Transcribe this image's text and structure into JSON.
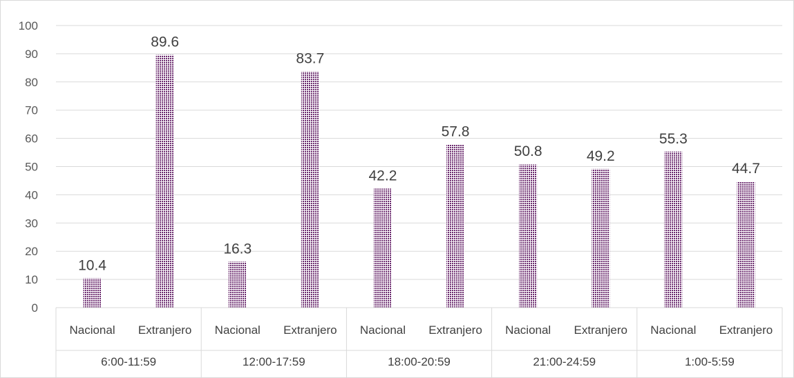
{
  "chart_data": {
    "type": "bar",
    "title": "",
    "xlabel": "",
    "ylabel": "",
    "ylim": [
      0,
      100
    ],
    "yticks": [
      "0",
      "10",
      "20",
      "30",
      "40",
      "50",
      "60",
      "70",
      "80",
      "90",
      "100"
    ],
    "grid": true,
    "legend": "none",
    "bar_color": "#6b2a6e",
    "bar_pattern": "dotted",
    "groups": [
      "6:00-11:59",
      "12:00-17:59",
      "18:00-20:59",
      "21:00-24:59",
      "1:00-5:59"
    ],
    "categories": [
      {
        "group": "6:00-11:59",
        "label": "Nacional",
        "value": 10.4,
        "value_label": "10.4"
      },
      {
        "group": "6:00-11:59",
        "label": "Extranjero",
        "value": 89.6,
        "value_label": "89.6"
      },
      {
        "group": "12:00-17:59",
        "label": "Nacional",
        "value": 16.3,
        "value_label": "16.3"
      },
      {
        "group": "12:00-17:59",
        "label": "Extranjero",
        "value": 83.7,
        "value_label": "83.7"
      },
      {
        "group": "18:00-20:59",
        "label": "Nacional",
        "value": 42.2,
        "value_label": "42.2"
      },
      {
        "group": "18:00-20:59",
        "label": "Extranjero",
        "value": 57.8,
        "value_label": "57.8"
      },
      {
        "group": "21:00-24:59",
        "label": "Nacional",
        "value": 50.8,
        "value_label": "50.8"
      },
      {
        "group": "21:00-24:59",
        "label": "Extranjero",
        "value": 49.2,
        "value_label": "49.2"
      },
      {
        "group": "1:00-5:59",
        "label": "Nacional",
        "value": 55.3,
        "value_label": "55.3"
      },
      {
        "group": "1:00-5:59",
        "label": "Extranjero",
        "value": 44.7,
        "value_label": "44.7"
      }
    ]
  }
}
